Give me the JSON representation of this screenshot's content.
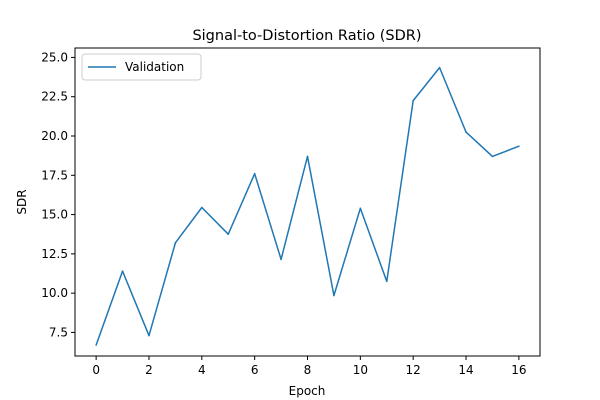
{
  "chart_data": {
    "type": "line",
    "title": "Signal-to-Distortion Ratio (SDR)",
    "xlabel": "Epoch",
    "ylabel": "SDR",
    "xlim": [
      -0.8,
      16.8
    ],
    "ylim": [
      6.0,
      25.6
    ],
    "xticks": [
      0,
      2,
      4,
      6,
      8,
      10,
      12,
      14,
      16
    ],
    "yticks": [
      7.5,
      10.0,
      12.5,
      15.0,
      17.5,
      20.0,
      22.5,
      25.0
    ],
    "xtick_labels": [
      "0",
      "2",
      "4",
      "6",
      "8",
      "10",
      "12",
      "14",
      "16"
    ],
    "ytick_labels": [
      "7.5",
      "10.0",
      "12.5",
      "15.0",
      "17.5",
      "20.0",
      "22.5",
      "25.0"
    ],
    "grid": false,
    "legend_position": "upper-left",
    "series": [
      {
        "name": "Validation",
        "color": "#1f77b4",
        "x": [
          0,
          1,
          2,
          3,
          4,
          5,
          6,
          7,
          8,
          9,
          10,
          11,
          12,
          13,
          14,
          15,
          16
        ],
        "y": [
          6.7,
          11.4,
          7.3,
          13.2,
          15.45,
          13.75,
          17.6,
          12.15,
          18.7,
          9.85,
          15.4,
          10.75,
          22.25,
          24.35,
          20.25,
          18.7,
          19.35
        ]
      }
    ]
  }
}
